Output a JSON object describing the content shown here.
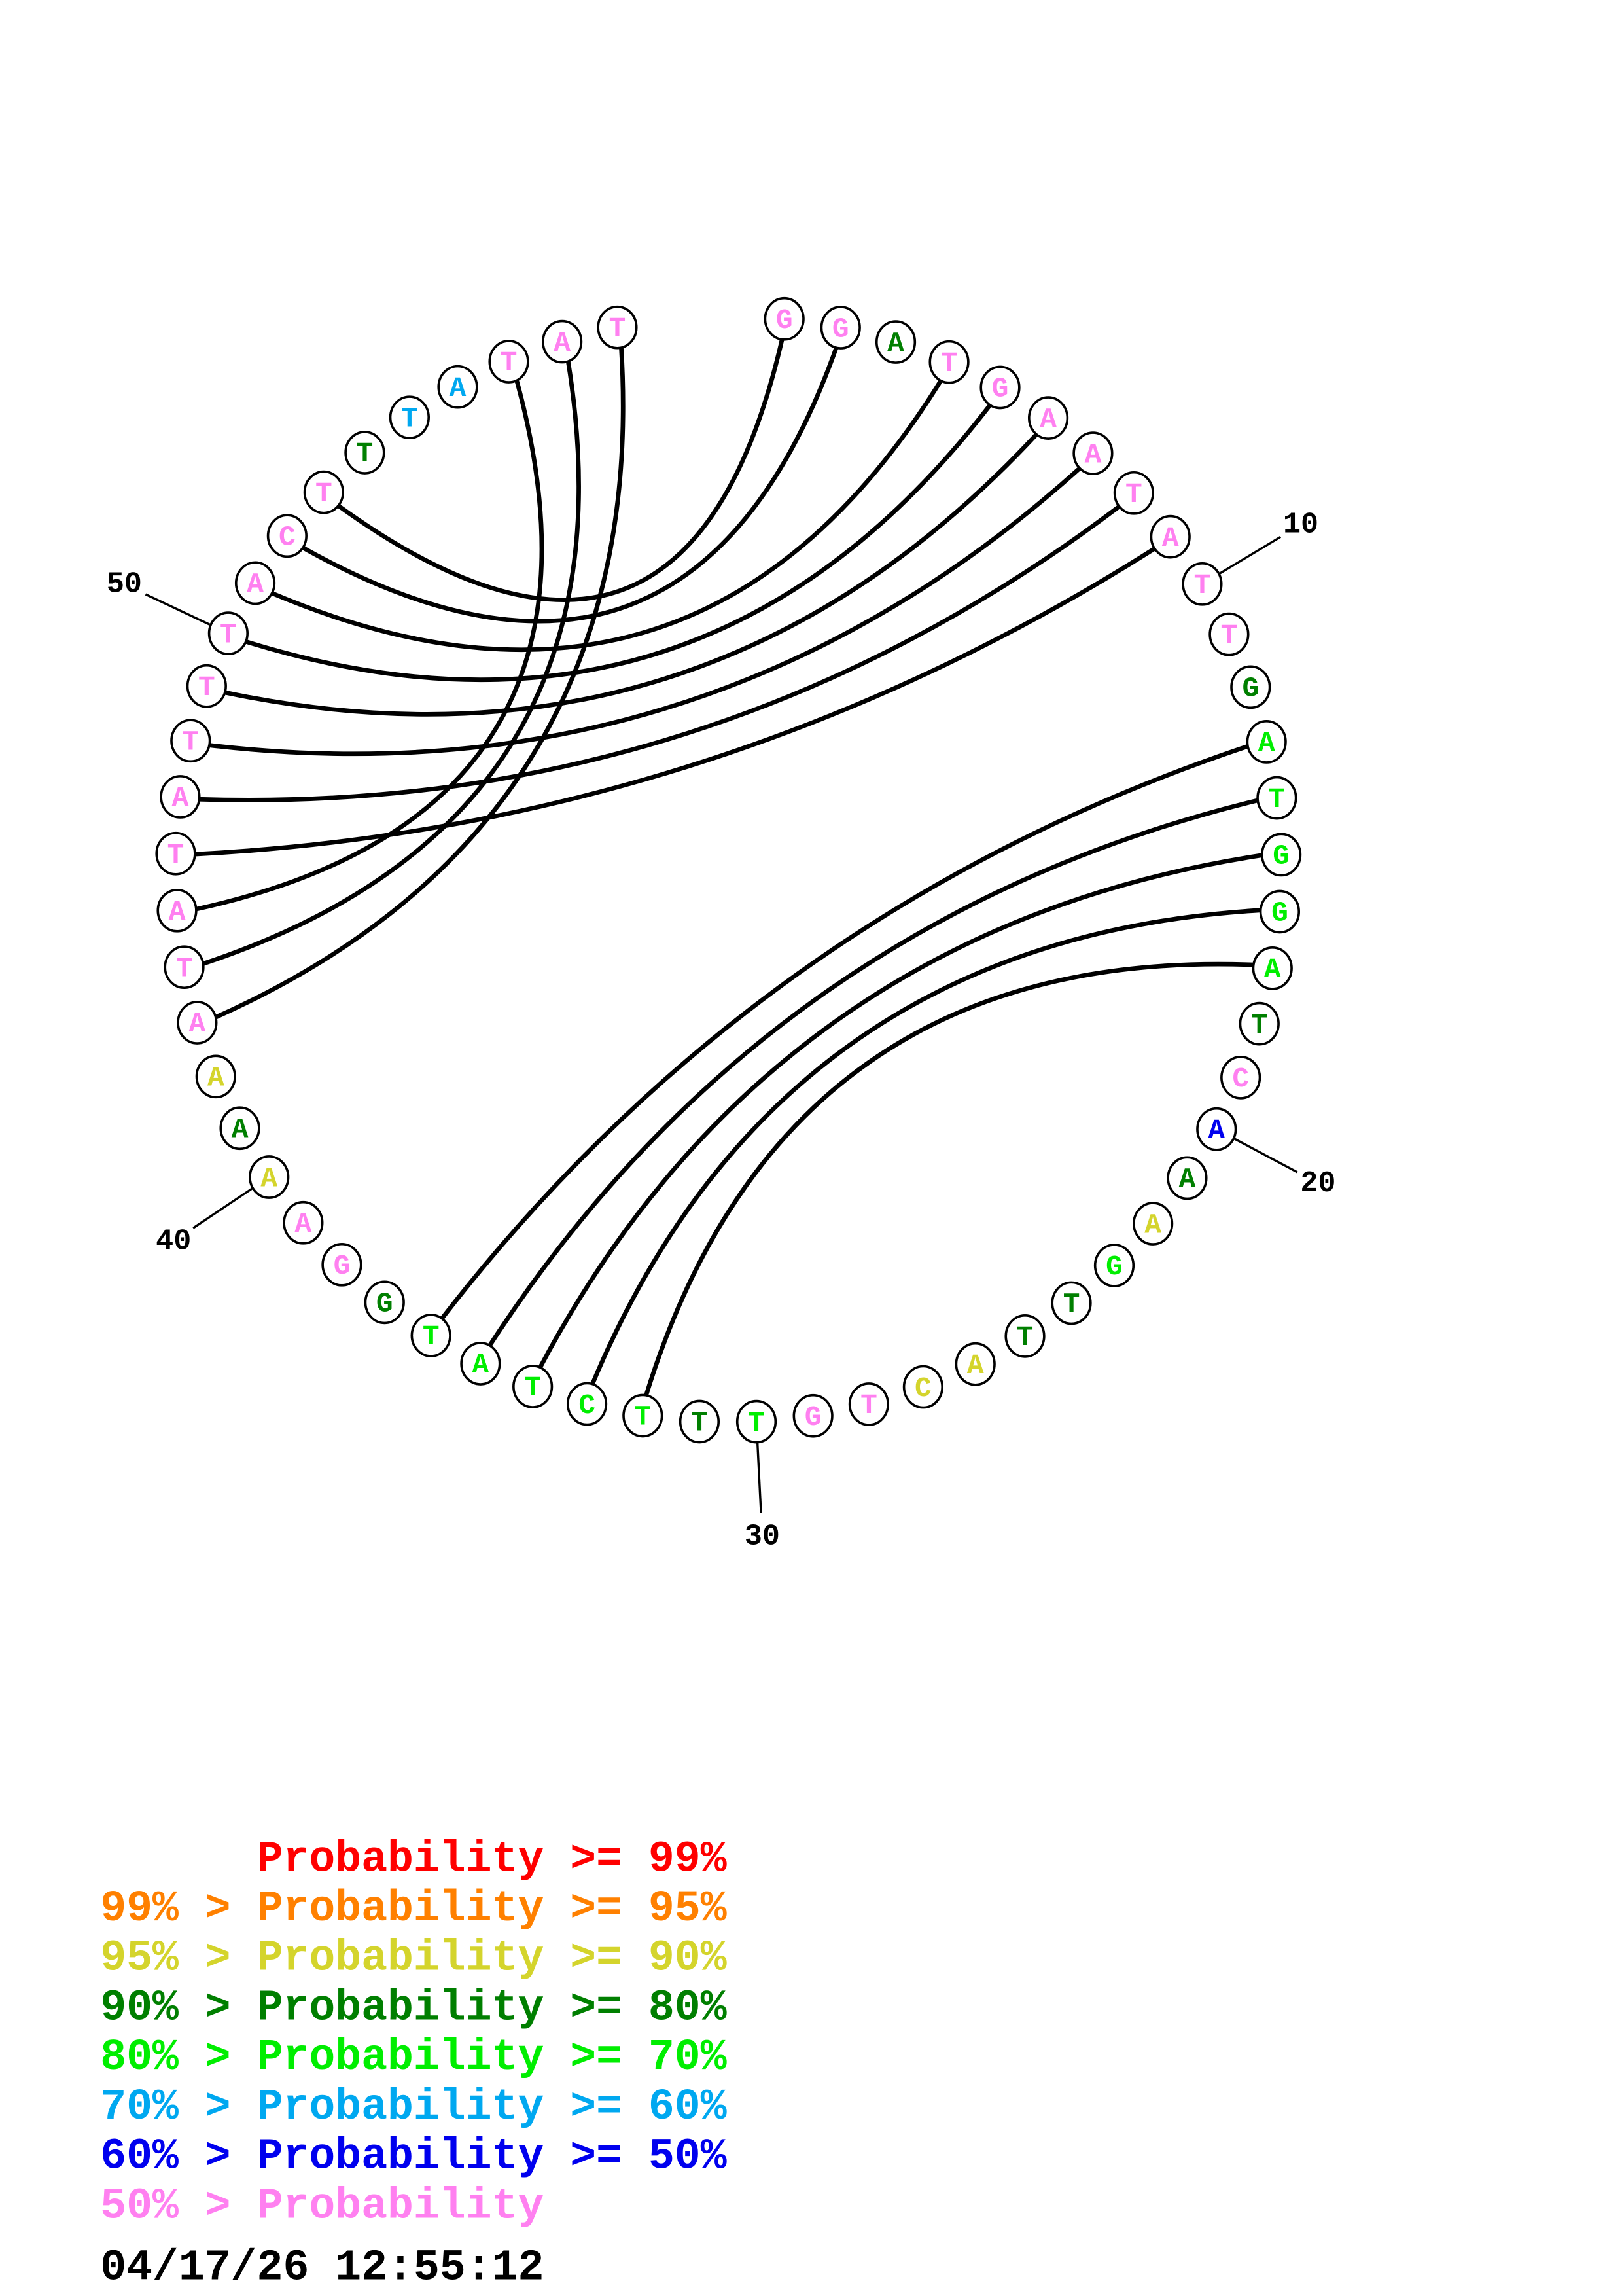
{
  "colors": {
    "p99": "#ff0000",
    "p95": "#ff8000",
    "p90": "#d4d42c",
    "p80": "#007f00",
    "p70": "#00ee00",
    "p60": "#00a8f0",
    "p50": "#0000ee",
    "plow": "#ff80f0"
  },
  "structure": {
    "nucleotides": [
      {
        "base": "G",
        "cls": "plow"
      },
      {
        "base": "G",
        "cls": "plow"
      },
      {
        "base": "A",
        "cls": "p80"
      },
      {
        "base": "T",
        "cls": "plow"
      },
      {
        "base": "G",
        "cls": "plow"
      },
      {
        "base": "A",
        "cls": "plow"
      },
      {
        "base": "A",
        "cls": "plow"
      },
      {
        "base": "T",
        "cls": "plow"
      },
      {
        "base": "A",
        "cls": "plow"
      },
      {
        "base": "T",
        "cls": "plow"
      },
      {
        "base": "T",
        "cls": "plow"
      },
      {
        "base": "G",
        "cls": "p80"
      },
      {
        "base": "A",
        "cls": "p70"
      },
      {
        "base": "T",
        "cls": "p70"
      },
      {
        "base": "G",
        "cls": "p70"
      },
      {
        "base": "G",
        "cls": "p70"
      },
      {
        "base": "A",
        "cls": "p70"
      },
      {
        "base": "T",
        "cls": "p80"
      },
      {
        "base": "C",
        "cls": "plow"
      },
      {
        "base": "A",
        "cls": "p50"
      },
      {
        "base": "A",
        "cls": "p80"
      },
      {
        "base": "A",
        "cls": "p90"
      },
      {
        "base": "G",
        "cls": "p70"
      },
      {
        "base": "T",
        "cls": "p80"
      },
      {
        "base": "T",
        "cls": "p80"
      },
      {
        "base": "A",
        "cls": "p90"
      },
      {
        "base": "C",
        "cls": "p90"
      },
      {
        "base": "T",
        "cls": "plow"
      },
      {
        "base": "G",
        "cls": "plow"
      },
      {
        "base": "T",
        "cls": "p70"
      },
      {
        "base": "T",
        "cls": "p80"
      },
      {
        "base": "T",
        "cls": "p70"
      },
      {
        "base": "C",
        "cls": "p70"
      },
      {
        "base": "T",
        "cls": "p70"
      },
      {
        "base": "A",
        "cls": "p70"
      },
      {
        "base": "T",
        "cls": "p70"
      },
      {
        "base": "G",
        "cls": "p80"
      },
      {
        "base": "G",
        "cls": "plow"
      },
      {
        "base": "A",
        "cls": "plow"
      },
      {
        "base": "A",
        "cls": "p90"
      },
      {
        "base": "A",
        "cls": "p80"
      },
      {
        "base": "A",
        "cls": "p90"
      },
      {
        "base": "A",
        "cls": "plow"
      },
      {
        "base": "T",
        "cls": "plow"
      },
      {
        "base": "A",
        "cls": "plow"
      },
      {
        "base": "T",
        "cls": "plow"
      },
      {
        "base": "A",
        "cls": "plow"
      },
      {
        "base": "T",
        "cls": "plow"
      },
      {
        "base": "T",
        "cls": "plow"
      },
      {
        "base": "T",
        "cls": "plow"
      },
      {
        "base": "A",
        "cls": "plow"
      },
      {
        "base": "C",
        "cls": "plow"
      },
      {
        "base": "T",
        "cls": "plow"
      },
      {
        "base": "T",
        "cls": "p80"
      },
      {
        "base": "T",
        "cls": "p60"
      },
      {
        "base": "A",
        "cls": "p60"
      },
      {
        "base": "T",
        "cls": "plow"
      },
      {
        "base": "A",
        "cls": "plow"
      },
      {
        "base": "T",
        "cls": "plow"
      }
    ],
    "pairs": [
      [
        1,
        53
      ],
      [
        2,
        52
      ],
      [
        4,
        51
      ],
      [
        5,
        50
      ],
      [
        6,
        49
      ],
      [
        7,
        48
      ],
      [
        8,
        47
      ],
      [
        9,
        46
      ],
      [
        57,
        45
      ],
      [
        58,
        44
      ],
      [
        59,
        43
      ],
      [
        13,
        36
      ],
      [
        14,
        35
      ],
      [
        15,
        34
      ],
      [
        16,
        33
      ],
      [
        17,
        32
      ]
    ],
    "position_labels": [
      "10",
      "20",
      "30",
      "40",
      "50"
    ]
  },
  "legend": [
    {
      "left": "",
      "mid": "Probability",
      "right": ">= 99%",
      "cls": "p99"
    },
    {
      "left": "99% >",
      "mid": "Probability",
      "right": ">= 95%",
      "cls": "p95"
    },
    {
      "left": "95% >",
      "mid": "Probability",
      "right": ">= 90%",
      "cls": "p90"
    },
    {
      "left": "90% >",
      "mid": "Probability",
      "right": ">= 80%",
      "cls": "p80"
    },
    {
      "left": "80% >",
      "mid": "Probability",
      "right": ">= 70%",
      "cls": "p70"
    },
    {
      "left": "70% >",
      "mid": "Probability",
      "right": ">= 60%",
      "cls": "p60"
    },
    {
      "left": "60% >",
      "mid": "Probability",
      "right": ">= 50%",
      "cls": "p50"
    },
    {
      "left": "50% >",
      "mid": "Probability",
      "right": "",
      "cls": "plow"
    }
  ],
  "timestamp": "04/17/26 12:55:12"
}
